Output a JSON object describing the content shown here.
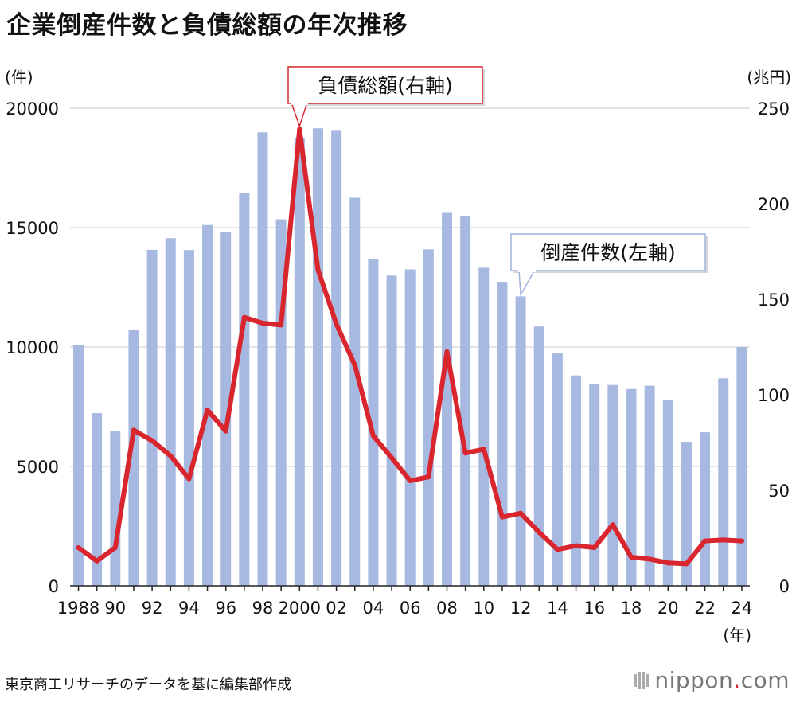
{
  "title": "企業倒産件数と負債総額の年次推移",
  "source": "東京商工リサーチのデータを基に編集部作成",
  "brand": {
    "name": "nippon",
    "dot": ".",
    "tld": "com"
  },
  "colors": {
    "bar": "#a7b9e0",
    "line": "#d9262e",
    "callout_line_border": "#d9262e",
    "callout_bar_border": "#9fb3dc"
  },
  "chart_data": {
    "type": "bar+line",
    "years": [
      1988,
      1989,
      1990,
      1991,
      1992,
      1993,
      1994,
      1995,
      1996,
      1997,
      1998,
      1999,
      2000,
      2001,
      2002,
      2003,
      2004,
      2005,
      2006,
      2007,
      2008,
      2009,
      2010,
      2011,
      2012,
      2013,
      2014,
      2015,
      2016,
      2017,
      2018,
      2019,
      2020,
      2021,
      2022,
      2023,
      2024
    ],
    "x_tick_labels": [
      "1988",
      "90",
      "92",
      "94",
      "96",
      "98",
      "2000",
      "02",
      "04",
      "06",
      "08",
      "10",
      "12",
      "14",
      "16",
      "18",
      "20",
      "22",
      "24"
    ],
    "x_tick_years": [
      1988,
      1990,
      1992,
      1994,
      1996,
      1998,
      2000,
      2002,
      2004,
      2006,
      2008,
      2010,
      2012,
      2014,
      2016,
      2018,
      2020,
      2022,
      2024
    ],
    "x_unit": "(年)",
    "left_axis": {
      "unit": "(件)",
      "range": [
        0,
        20000
      ],
      "ticks": [
        0,
        5000,
        10000,
        15000,
        20000
      ]
    },
    "right_axis": {
      "unit": "(兆円)",
      "range": [
        0,
        250
      ],
      "ticks": [
        0,
        50,
        100,
        150,
        200,
        250
      ]
    },
    "series": [
      {
        "name": "倒産件数(左軸)",
        "type": "bar",
        "axis": "left",
        "values": [
          10100,
          7230,
          6470,
          10720,
          14070,
          14560,
          14060,
          15110,
          14830,
          16460,
          18990,
          15350,
          18770,
          19160,
          19090,
          16250,
          13680,
          12990,
          13250,
          14090,
          15650,
          15480,
          13320,
          12730,
          12120,
          10860,
          9730,
          8810,
          8450,
          8410,
          8240,
          8380,
          7770,
          6030,
          6430,
          8690,
          10000
        ]
      },
      {
        "name": "負債総額(右軸)",
        "type": "line",
        "axis": "right",
        "values": [
          20.0,
          13.0,
          20.0,
          81.5,
          76.0,
          68.0,
          56.0,
          92.0,
          81.0,
          140.5,
          137.5,
          136.5,
          239.0,
          165.5,
          137.0,
          115.5,
          78.5,
          67.0,
          55.0,
          57.0,
          122.5,
          69.5,
          71.5,
          36.0,
          38.0,
          28.0,
          19.0,
          21.0,
          20.0,
          32.0,
          15.0,
          14.0,
          12.0,
          11.5,
          23.5,
          24.0,
          23.5
        ]
      }
    ],
    "annotations": [
      {
        "text": "負債総額(右軸)",
        "series": "負債総額(右軸)",
        "year": 2000
      },
      {
        "text": "倒産件数(左軸)",
        "series": "倒産件数(左軸)",
        "year": 2012
      }
    ]
  }
}
